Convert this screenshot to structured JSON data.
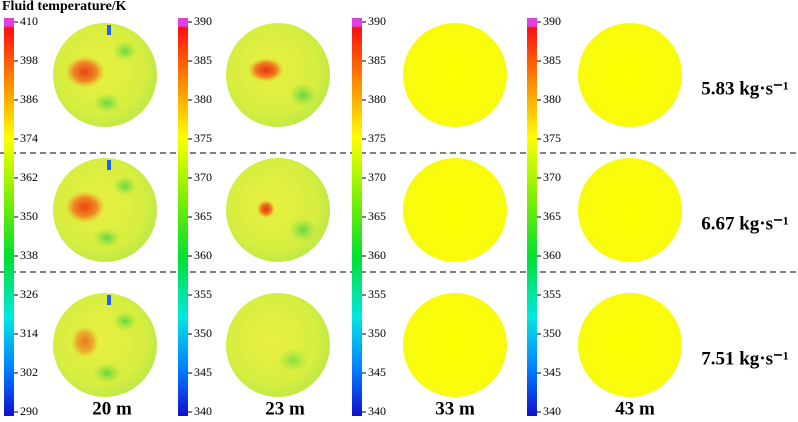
{
  "title": "Fluid temperature/K",
  "colorbars": [
    {
      "ticks": [
        410,
        398,
        386,
        374,
        362,
        350,
        338,
        326,
        314,
        302,
        290
      ]
    },
    {
      "ticks": [
        390,
        385,
        380,
        375,
        370,
        365,
        360,
        355,
        350,
        345,
        340
      ]
    },
    {
      "ticks": [
        390,
        385,
        380,
        375,
        370,
        365,
        360,
        355,
        350,
        345,
        340
      ]
    },
    {
      "ticks": [
        390,
        385,
        380,
        375,
        370,
        365,
        360,
        355,
        350,
        345,
        340
      ]
    }
  ],
  "columns": [
    "20 m",
    "23 m",
    "33 m",
    "43 m"
  ],
  "rows": [
    "5.83 kg·s⁻¹",
    "6.67 kg·s⁻¹",
    "7.51 kg·s⁻¹"
  ]
}
